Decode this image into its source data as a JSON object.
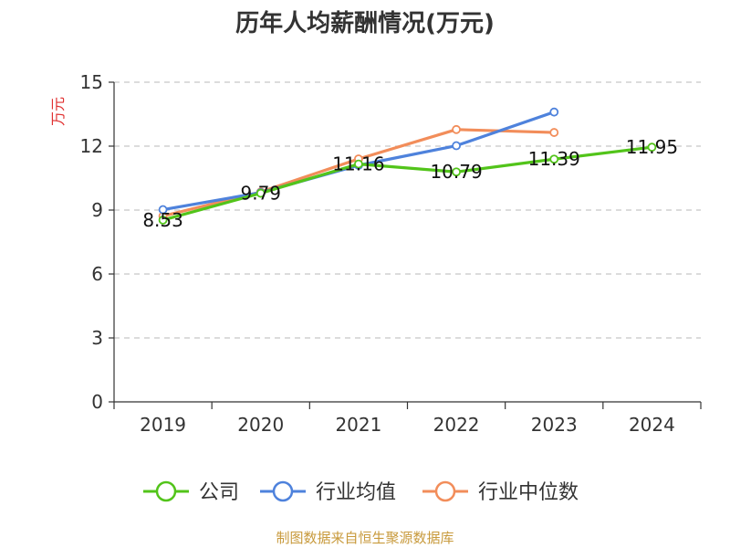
{
  "chart_data": {
    "type": "line",
    "title": "历年人均薪酬情况(万元)",
    "ylabel": "万元",
    "xlabel": "",
    "categories": [
      "2019",
      "2020",
      "2021",
      "2022",
      "2023",
      "2024"
    ],
    "ylim": [
      0,
      15
    ],
    "yticks": [
      0,
      3,
      6,
      9,
      12,
      15
    ],
    "grid": true,
    "legend_position": "bottom",
    "series": [
      {
        "name": "公司",
        "color": "#52c41a",
        "values": [
          8.53,
          9.79,
          11.16,
          10.79,
          11.39,
          11.95
        ],
        "labels": [
          "8.53",
          "9.79",
          "11.16",
          "10.79",
          "11.39",
          "11.95"
        ]
      },
      {
        "name": "行业均值",
        "color": "#4e82dc",
        "values": [
          9.02,
          9.82,
          11.1,
          12.02,
          13.6,
          null
        ]
      },
      {
        "name": "行业中位数",
        "color": "#f28d5a",
        "values": [
          8.72,
          9.85,
          11.4,
          12.78,
          12.64,
          null
        ]
      }
    ],
    "source": "制图数据来自恒生聚源数据库"
  }
}
